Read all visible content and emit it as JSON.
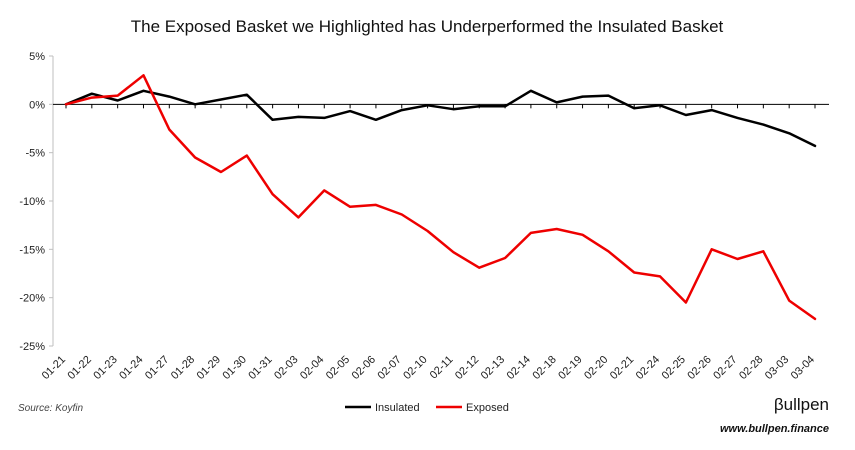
{
  "chart_data": {
    "type": "line",
    "title": "The Exposed Basket we Highlighted has Underperformed the Insulated Basket",
    "xlabel": "",
    "ylabel": "",
    "ylim": [
      -25,
      5
    ],
    "yticks": [
      5,
      0,
      -5,
      -10,
      -15,
      -20,
      -25
    ],
    "ytick_labels": [
      "5%",
      "0%",
      "-5%",
      "-10%",
      "-15%",
      "-20%",
      "-25%"
    ],
    "grid": false,
    "legend_position": "bottom-center",
    "categories": [
      "01-21",
      "01-22",
      "01-23",
      "01-24",
      "01-27",
      "01-28",
      "01-29",
      "01-30",
      "01-31",
      "02-03",
      "02-04",
      "02-05",
      "02-06",
      "02-07",
      "02-10",
      "02-11",
      "02-12",
      "02-13",
      "02-14",
      "02-18",
      "02-19",
      "02-20",
      "02-21",
      "02-24",
      "02-25",
      "02-26",
      "02-27",
      "02-28",
      "03-03",
      "03-04"
    ],
    "series": [
      {
        "name": "Insulated",
        "color": "#000000",
        "values": [
          0,
          1.1,
          0.4,
          1.4,
          0.8,
          0.0,
          0.5,
          1.0,
          -1.6,
          -1.3,
          -1.4,
          -0.7,
          -1.6,
          -0.6,
          -0.1,
          -0.5,
          -0.2,
          -0.2,
          1.4,
          0.2,
          0.8,
          0.9,
          -0.4,
          -0.1,
          -1.1,
          -0.6,
          -1.4,
          -2.1,
          -3.0,
          -4.3
        ]
      },
      {
        "name": "Exposed",
        "color": "#ee0000",
        "values": [
          0,
          0.7,
          0.9,
          3.0,
          -2.6,
          -5.5,
          -7.0,
          -5.3,
          -9.3,
          -11.7,
          -8.9,
          -10.6,
          -10.4,
          -11.4,
          -13.1,
          -15.3,
          -16.9,
          -15.9,
          -13.3,
          -12.9,
          -13.5,
          -15.2,
          -17.4,
          -17.8,
          -20.5,
          -15.0,
          -16.0,
          -15.2,
          -20.3,
          -22.2
        ]
      }
    ]
  },
  "footer": {
    "source": "Source: Koyfin",
    "brand": "βullpen",
    "website": "www.bullpen.finance"
  }
}
